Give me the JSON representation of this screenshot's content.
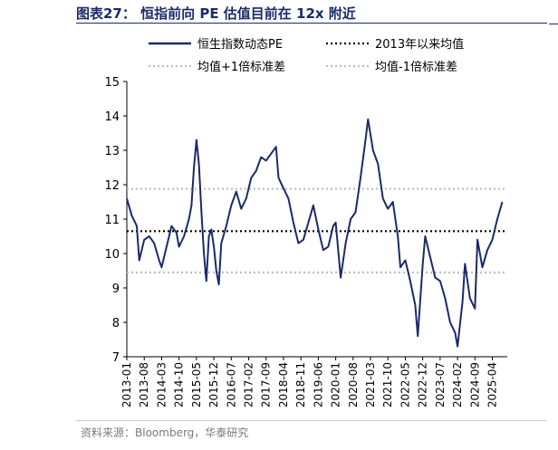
{
  "figure": {
    "title": "图表27：  恒指前向 PE 估值目前在 12x 附近",
    "source": "资料来源：Bloomberg，华泰研究"
  },
  "colors": {
    "line": "#1b2a6b",
    "mean": "#000000",
    "bands": "#bdbdbd"
  },
  "chart_data": {
    "type": "line",
    "title": "",
    "xlabel": "",
    "ylabel": "",
    "ylim": [
      7,
      15
    ],
    "yticks": [
      "7",
      "8",
      "9",
      "10",
      "11",
      "12",
      "13",
      "14",
      "15"
    ],
    "xticks": [
      "2013-01",
      "2013-08",
      "2014-03",
      "2014-10",
      "2015-05",
      "2015-12",
      "2016-07",
      "2017-02",
      "2017-09",
      "2018-04",
      "2018-11",
      "2019-06",
      "2020-01",
      "2020-08",
      "2021-03",
      "2021-10",
      "2022-05",
      "2022-12",
      "2023-07",
      "2024-02",
      "2024-09",
      "2025-04"
    ],
    "grid": false,
    "legend_position": "top",
    "series": [
      {
        "name": "恒生指数动态PE",
        "style": "solid",
        "x": [
          "2013-01",
          "2013-03",
          "2013-05",
          "2013-06",
          "2013-08",
          "2013-10",
          "2013-12",
          "2014-02",
          "2014-03",
          "2014-05",
          "2014-07",
          "2014-09",
          "2014-10",
          "2014-12",
          "2015-02",
          "2015-03",
          "2015-04",
          "2015-05",
          "2015-06",
          "2015-07",
          "2015-08",
          "2015-09",
          "2015-10",
          "2015-11",
          "2015-12",
          "2016-01",
          "2016-02",
          "2016-03",
          "2016-05",
          "2016-07",
          "2016-09",
          "2016-11",
          "2017-01",
          "2017-03",
          "2017-05",
          "2017-07",
          "2017-09",
          "2017-11",
          "2018-01",
          "2018-02",
          "2018-04",
          "2018-06",
          "2018-08",
          "2018-10",
          "2018-12",
          "2019-02",
          "2019-04",
          "2019-06",
          "2019-08",
          "2019-10",
          "2019-12",
          "2020-01",
          "2020-03",
          "2020-05",
          "2020-07",
          "2020-09",
          "2020-11",
          "2021-01",
          "2021-02",
          "2021-04",
          "2021-06",
          "2021-08",
          "2021-10",
          "2021-12",
          "2022-02",
          "2022-03",
          "2022-05",
          "2022-07",
          "2022-09",
          "2022-10",
          "2022-12",
          "2023-01",
          "2023-03",
          "2023-05",
          "2023-07",
          "2023-09",
          "2023-11",
          "2024-01",
          "2024-02",
          "2024-04",
          "2024-05",
          "2024-07",
          "2024-09",
          "2024-10",
          "2024-12",
          "2025-02",
          "2025-04",
          "2025-06",
          "2025-08"
        ],
        "values": [
          11.6,
          11.1,
          10.8,
          9.8,
          10.4,
          10.5,
          10.3,
          9.8,
          9.6,
          10.2,
          10.8,
          10.6,
          10.2,
          10.5,
          11.0,
          11.4,
          12.5,
          13.3,
          12.6,
          11.2,
          10.0,
          9.2,
          10.5,
          10.7,
          10.2,
          9.5,
          9.1,
          10.3,
          10.8,
          11.4,
          11.8,
          11.3,
          11.6,
          12.2,
          12.4,
          12.8,
          12.7,
          12.9,
          13.1,
          12.2,
          11.9,
          11.6,
          10.9,
          10.3,
          10.4,
          10.9,
          11.4,
          10.7,
          10.1,
          10.2,
          10.8,
          10.9,
          9.3,
          10.3,
          11.0,
          11.2,
          12.2,
          13.3,
          13.9,
          13.0,
          12.6,
          11.6,
          11.3,
          11.5,
          10.5,
          9.6,
          9.8,
          9.2,
          8.5,
          7.6,
          9.7,
          10.5,
          9.9,
          9.3,
          9.2,
          8.7,
          8.0,
          7.7,
          7.3,
          8.6,
          9.7,
          8.7,
          8.4,
          10.4,
          9.6,
          10.1,
          10.4,
          11.0,
          11.5
        ]
      },
      {
        "name": "2013年以来均值",
        "style": "dotted-black",
        "values": [
          10.65
        ]
      },
      {
        "name": "均值+1倍标准差",
        "style": "dotted-grey",
        "values": [
          11.88
        ]
      },
      {
        "name": "均值-1倍标准差",
        "style": "dotted-grey",
        "values": [
          9.45
        ]
      }
    ]
  }
}
